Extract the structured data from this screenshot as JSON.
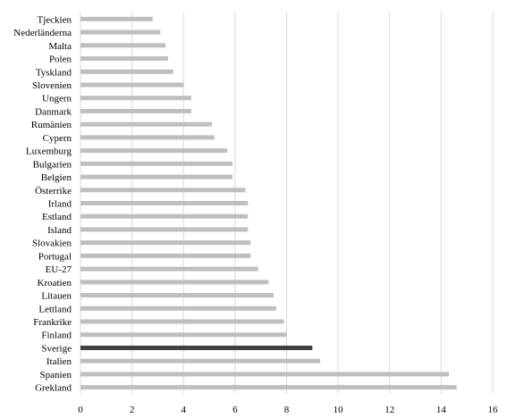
{
  "chart_data": {
    "type": "bar",
    "orientation": "horizontal",
    "categories": [
      "Tjeckien",
      "Nederländerna",
      "Malta",
      "Polen",
      "Tyskland",
      "Slovenien",
      "Ungern",
      "Danmark",
      "Rumänien",
      "Cypern",
      "Luxemburg",
      "Bulgarien",
      "Belgien",
      "Österrike",
      "Irland",
      "Estland",
      "Island",
      "Slovakien",
      "Portugal",
      "EU-27",
      "Kroatien",
      "Litauen",
      "Lettland",
      "Frankrike",
      "Finland",
      "Sverige",
      "Italien",
      "Spanien",
      "Grekland"
    ],
    "values": [
      2.8,
      3.1,
      3.3,
      3.4,
      3.6,
      4.0,
      4.3,
      4.3,
      5.1,
      5.2,
      5.7,
      5.9,
      5.9,
      6.4,
      6.5,
      6.5,
      6.5,
      6.6,
      6.6,
      6.9,
      7.3,
      7.5,
      7.6,
      7.9,
      8.0,
      9.0,
      9.3,
      14.3,
      14.6
    ],
    "highlight": "Sverige",
    "xlim": [
      0,
      16
    ],
    "xticks": [
      0,
      2,
      4,
      6,
      8,
      10,
      12,
      14,
      16
    ],
    "grid": "vertical",
    "colors": {
      "bar": "#bfbfbf",
      "highlight": "#404040",
      "grid": "#d9d9d9"
    },
    "title": "",
    "xlabel": "",
    "ylabel": ""
  }
}
